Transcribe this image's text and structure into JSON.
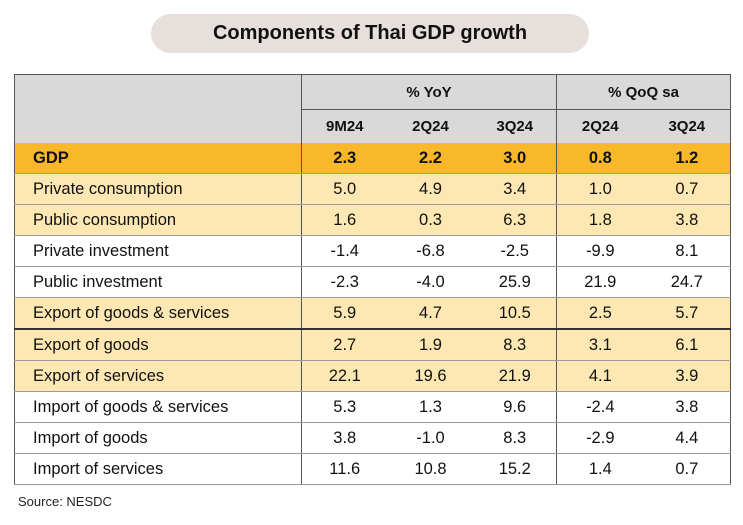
{
  "title": "Components of Thai GDP growth",
  "header": {
    "group_yoy": "% YoY",
    "group_qoq": "% QoQ sa",
    "periods": [
      "9M24",
      "2Q24",
      "3Q24",
      "2Q24",
      "3Q24"
    ]
  },
  "rows": [
    {
      "label": "GDP",
      "values": [
        "2.3",
        "2.2",
        "3.0",
        "0.8",
        "1.2"
      ]
    },
    {
      "label": "Private consumption",
      "values": [
        "5.0",
        "4.9",
        "3.4",
        "1.0",
        "0.7"
      ]
    },
    {
      "label": "Public consumption",
      "values": [
        "1.6",
        "0.3",
        "6.3",
        "1.8",
        "3.8"
      ]
    },
    {
      "label": "Private investment",
      "values": [
        "-1.4",
        "-6.8",
        "-2.5",
        "-9.9",
        "8.1"
      ]
    },
    {
      "label": "Public investment",
      "values": [
        "-2.3",
        "-4.0",
        "25.9",
        "21.9",
        "24.7"
      ]
    },
    {
      "label": "Export of goods & services",
      "values": [
        "5.9",
        "4.7",
        "10.5",
        "2.5",
        "5.7"
      ]
    },
    {
      "label": "Export of goods",
      "values": [
        "2.7",
        "1.9",
        "8.3",
        "3.1",
        "6.1"
      ]
    },
    {
      "label": "Export of services",
      "values": [
        "22.1",
        "19.6",
        "21.9",
        "4.1",
        "3.9"
      ]
    },
    {
      "label": "Import of goods & services",
      "values": [
        "5.3",
        "1.3",
        "9.6",
        "-2.4",
        "3.8"
      ]
    },
    {
      "label": "Import of goods",
      "values": [
        "3.8",
        "-1.0",
        "8.3",
        "-2.9",
        "4.4"
      ]
    },
    {
      "label": "Import of services",
      "values": [
        "11.6",
        "10.8",
        "15.2",
        "1.4",
        "0.7"
      ]
    }
  ],
  "colors": {
    "gdp_row": "#f8b829",
    "highlight_row": "#fde7b3",
    "header_bg": "#d9d9d9",
    "title_pill": "#e6dfdc"
  },
  "source": "Source: NESDC"
}
